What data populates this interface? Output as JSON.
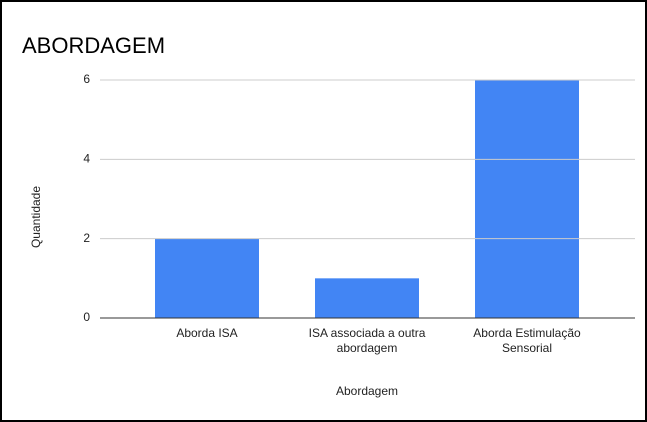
{
  "chart_data": {
    "type": "bar",
    "title": "ABORDAGEM",
    "categories": [
      "Aborda ISA",
      "ISA associada a outra abordagem",
      "Aborda Estimulação Sensorial"
    ],
    "values": [
      2,
      1,
      6
    ],
    "color": "#4285f4",
    "ylim": [
      0,
      6
    ],
    "yticks": [
      0,
      2,
      4,
      6
    ],
    "grid": true,
    "x_label": "Abordagem",
    "y_label": "Quantidade"
  }
}
